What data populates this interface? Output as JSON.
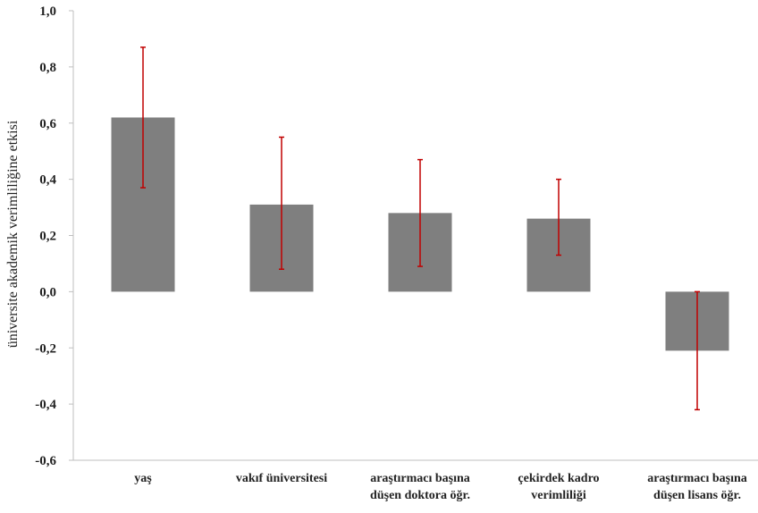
{
  "chart_data": {
    "type": "bar",
    "title": "",
    "xlabel": "",
    "ylabel": "üniversite akademik verimliliğine etkisi",
    "ylim": [
      -0.6,
      1.0
    ],
    "yticks": [
      1.0,
      0.8,
      0.6,
      0.4,
      0.2,
      0.0,
      -0.2,
      -0.4,
      -0.6
    ],
    "ytick_labels": [
      "1,0",
      "0,8",
      "0,6",
      "0,4",
      "0,2",
      "0,0",
      "-0,2",
      "-0,4",
      "-0,6"
    ],
    "categories": [
      [
        "yaş"
      ],
      [
        "vakıf üniversitesi"
      ],
      [
        "araştırmacı başına",
        "düşen doktora öğr."
      ],
      [
        "çekirdek kadro",
        "verimliliği"
      ],
      [
        "araştırmacı başına",
        "düşen lisans öğr."
      ]
    ],
    "values": [
      0.62,
      0.31,
      0.28,
      0.26,
      -0.21
    ],
    "error_low": [
      0.37,
      0.08,
      0.09,
      0.13,
      -0.42
    ],
    "error_high": [
      0.87,
      0.55,
      0.47,
      0.4,
      0.0
    ],
    "grid": false,
    "legend": "none",
    "colors": {
      "bar": "#7f7f7f",
      "error": "#c00000",
      "axis": "#bfbfbf"
    }
  }
}
